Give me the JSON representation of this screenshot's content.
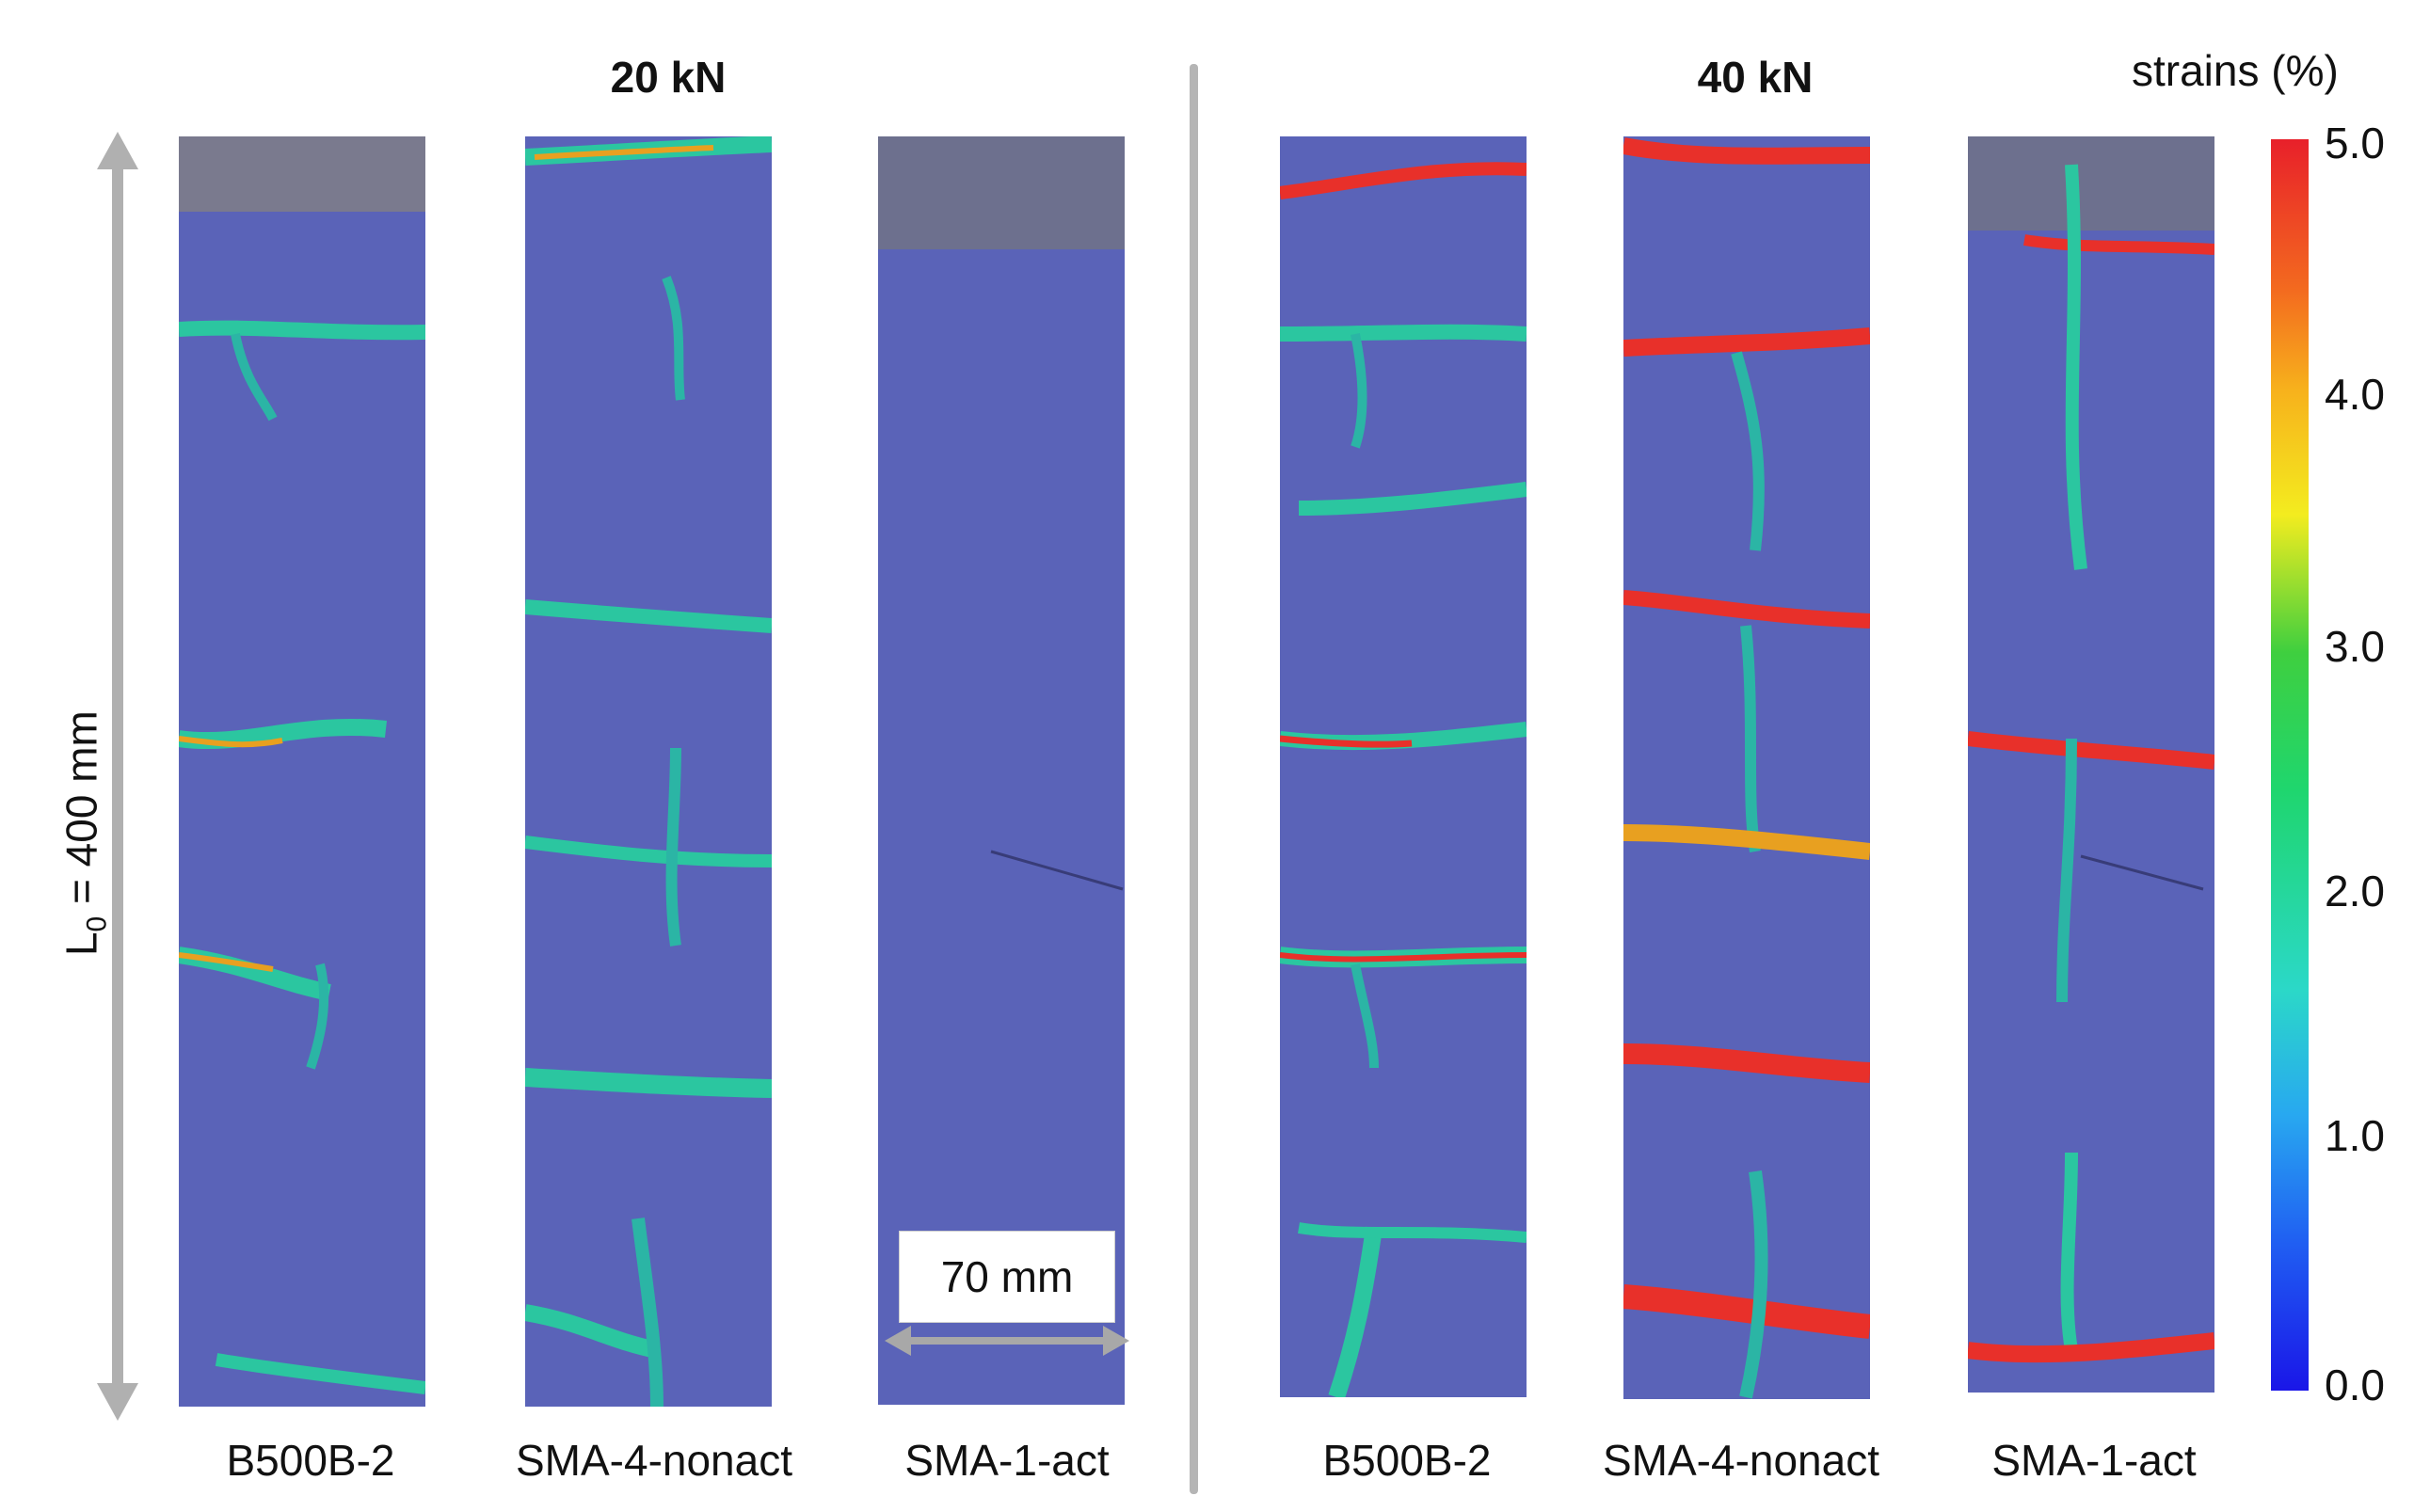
{
  "titles": {
    "left": "20 kN",
    "right": "40 kN"
  },
  "length_label": {
    "main": "L",
    "sub": "0",
    "rest": " = 400 mm"
  },
  "scale_label": "70 mm",
  "colorbar": {
    "title": "strains (%)",
    "ticks": [
      "5.0",
      "4.0",
      "3.0",
      "2.0",
      "1.0",
      "0.0"
    ],
    "colors": [
      "#e8202a",
      "#f3ec1f",
      "#1fd66e",
      "#2bd8c8",
      "#2060f2",
      "#1a16e8"
    ]
  },
  "specimens": [
    {
      "label": "B500B-2"
    },
    {
      "label": "SMA-4-nonact"
    },
    {
      "label": "SMA-1-act"
    },
    {
      "label": "B500B-2"
    },
    {
      "label": "SMA-4-nonact"
    },
    {
      "label": "SMA-1-act"
    }
  ]
}
